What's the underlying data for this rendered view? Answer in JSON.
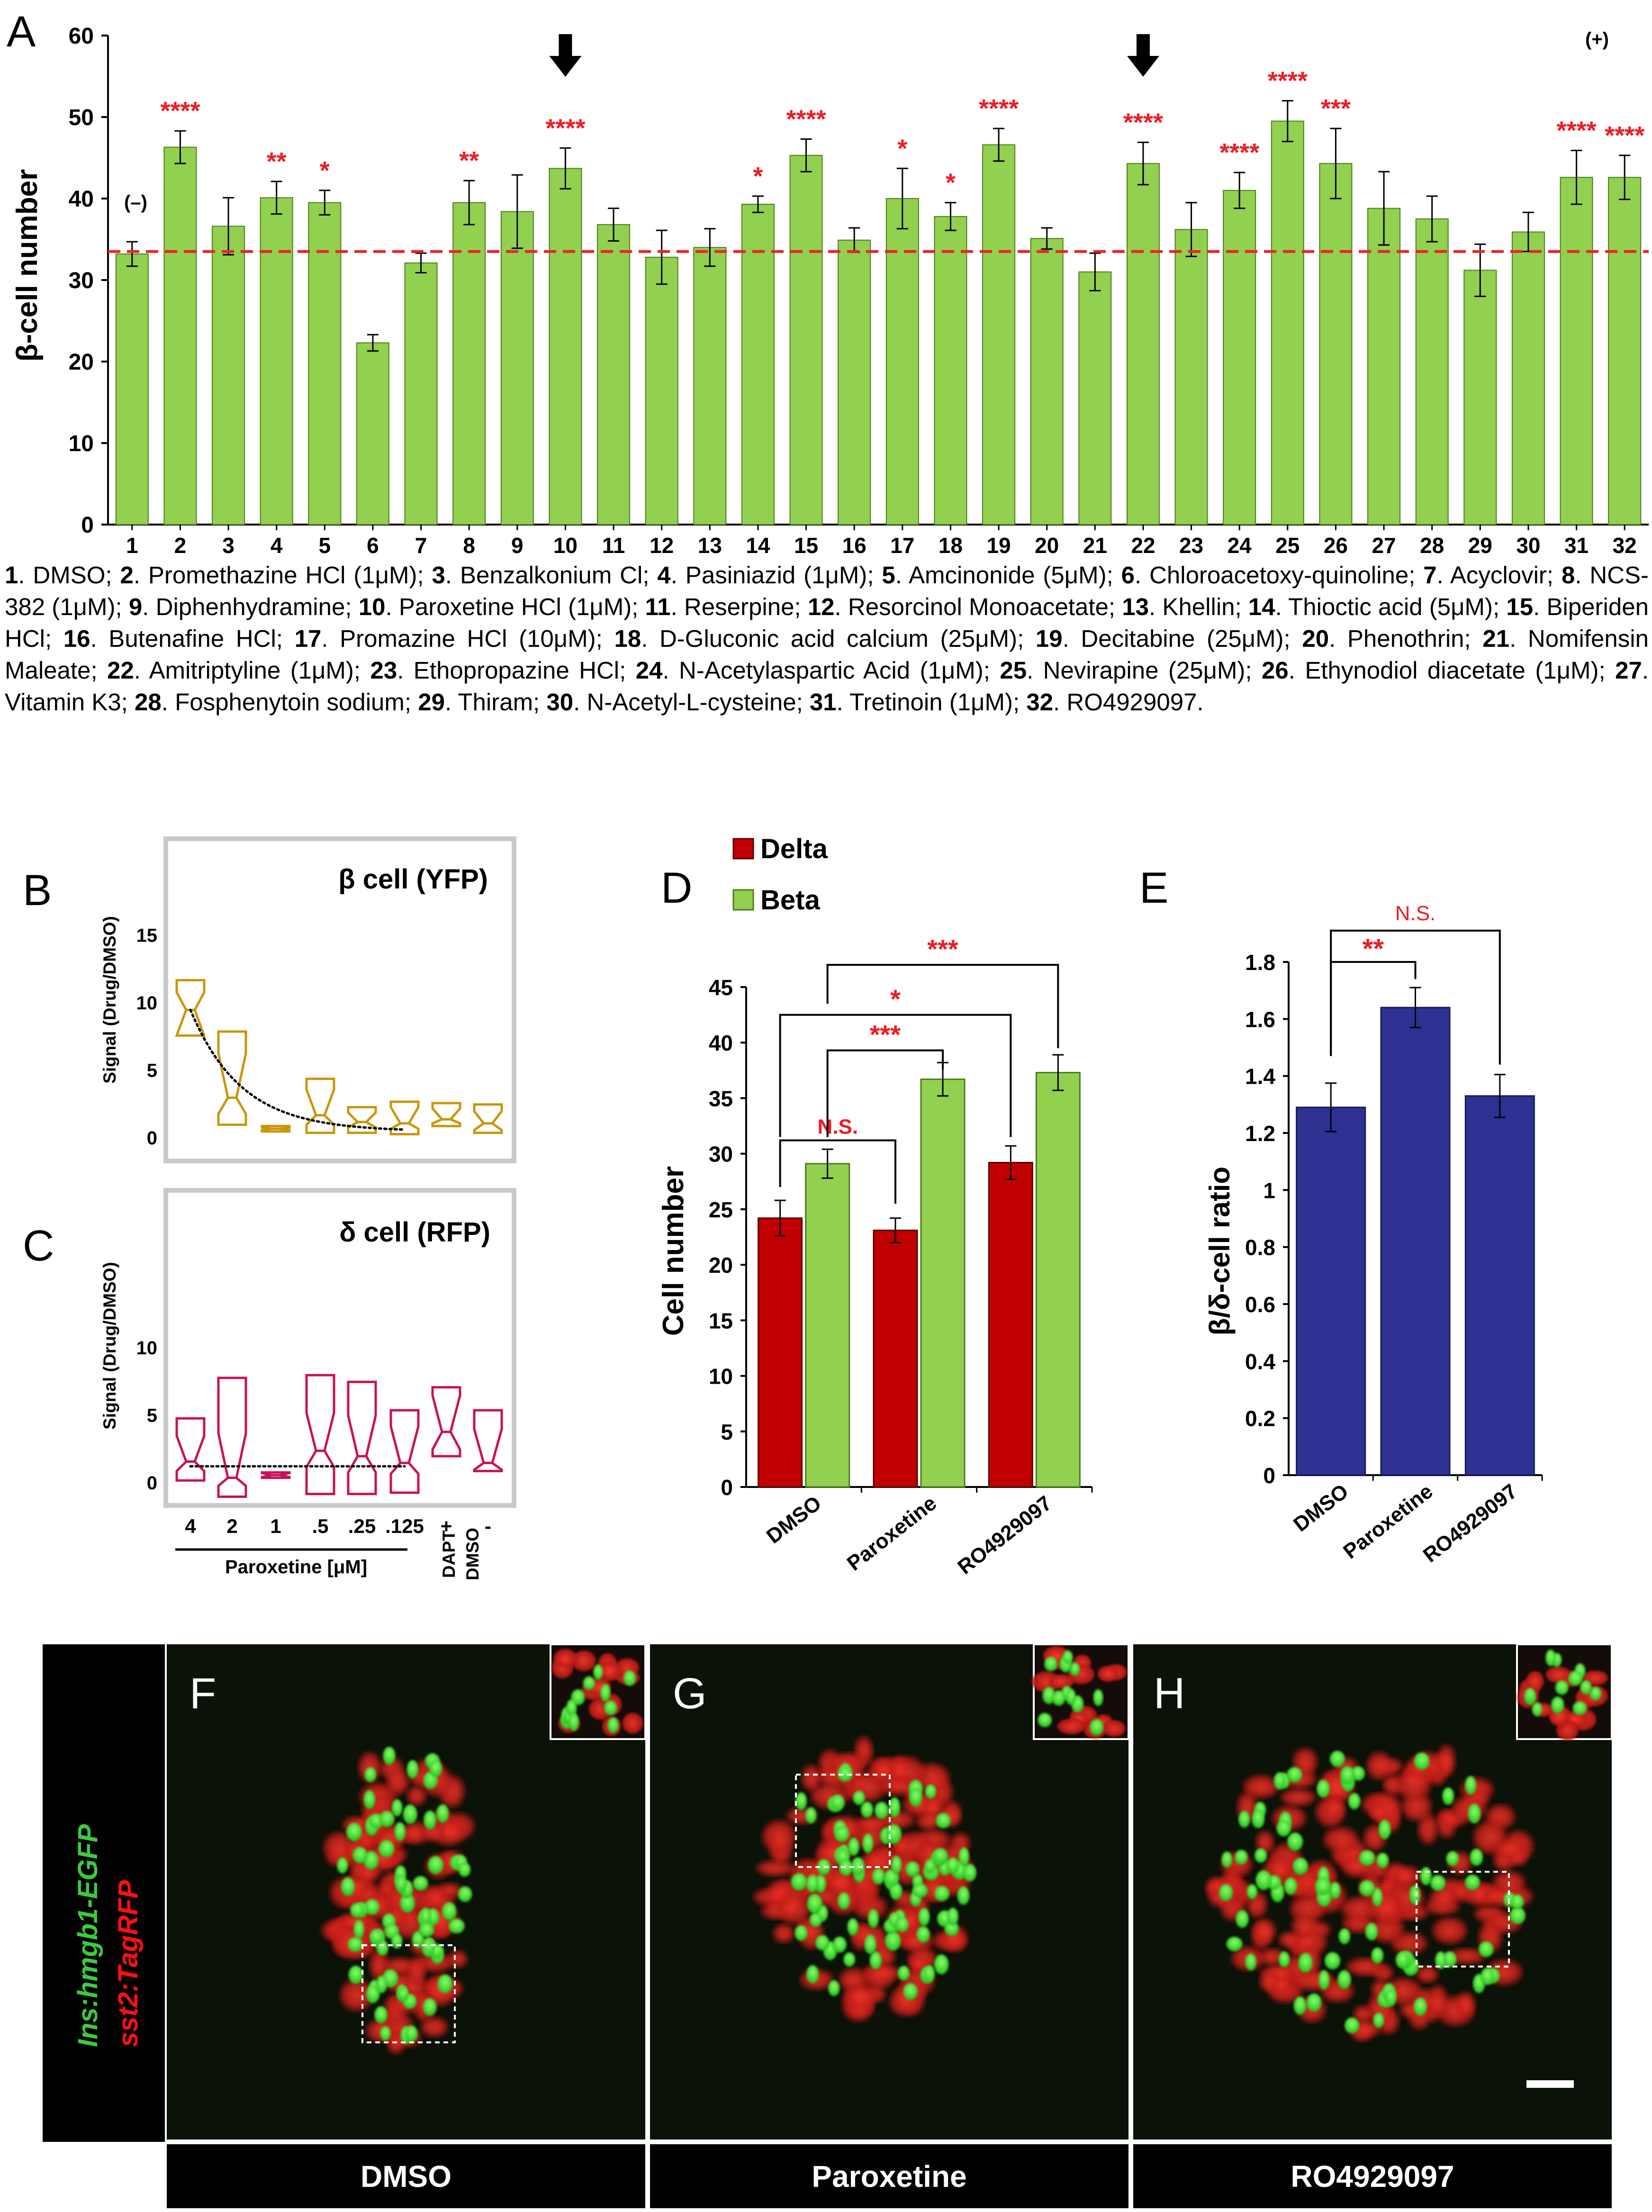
{
  "panel_letters": {
    "A": "A",
    "B": "B",
    "C": "C",
    "D": "D",
    "E": "E",
    "F": "F",
    "G": "G",
    "H": "H"
  },
  "colors": {
    "green": "#92d050",
    "green_stroke": "#4f7a1c",
    "red_line": "#e8252a",
    "star": "#ee1c24",
    "gold": "#c9960c",
    "pink": "#c9105a",
    "delta": "#c00000",
    "navy": "#2e3192"
  },
  "legend_text": {
    "items": [
      {
        "num": "1",
        "text": ". DMSO; "
      },
      {
        "num": "2",
        "text": ". Promethazine HCl (1μM); "
      },
      {
        "num": "3",
        "text": ". Benzalkonium Cl; "
      },
      {
        "num": "4",
        "text": ". Pasiniazid (1μM); "
      },
      {
        "num": "5",
        "text": ". Amcinonide (5μM); "
      },
      {
        "num": "6",
        "text": ". Chloroacetoxy-quinoline; "
      },
      {
        "num": "7",
        "text": ". Acyclovir; "
      },
      {
        "num": "8",
        "text": ". NCS-382 (1μM); "
      },
      {
        "num": "9",
        "text": ". Diphenhydramine; "
      },
      {
        "num": "10",
        "text": ". Paroxetine HCl (1μM); "
      },
      {
        "num": "11",
        "text": ". Reserpine; "
      },
      {
        "num": "12",
        "text": ". Resorcinol Monoacetate; "
      },
      {
        "num": "13",
        "text": ". Khellin; "
      },
      {
        "num": "14",
        "text": ". Thioctic acid (5μM); "
      },
      {
        "num": "15",
        "text": ". Biperiden HCl; "
      },
      {
        "num": "16",
        "text": ". Butenafine HCl; "
      },
      {
        "num": "17",
        "text": ". Promazine HCl (10μM); "
      },
      {
        "num": "18",
        "text": ". D-Gluconic acid calcium (25μM); "
      },
      {
        "num": "19",
        "text": ". Decitabine (25μM); "
      },
      {
        "num": "20",
        "text": ". Phenothrin; "
      },
      {
        "num": "21",
        "text": ". Nomifensin Maleate; "
      },
      {
        "num": "22",
        "text": ". Amitriptyline (1μM); "
      },
      {
        "num": "23",
        "text": ". Ethopropazine HCl; "
      },
      {
        "num": "24",
        "text": ". N-Acetylaspartic Acid (1μM); "
      },
      {
        "num": "25",
        "text": ". Nevirapine (25μM); "
      },
      {
        "num": "26",
        "text": ". Ethynodiol diacetate (1μM); "
      },
      {
        "num": "27",
        "text": ". Vitamin K3; "
      },
      {
        "num": "28",
        "text": ". Fosphenytoin sodium; "
      },
      {
        "num": "29",
        "text": ". Thiram; "
      },
      {
        "num": "30",
        "text": ". N-Acetyl-L-cysteine; "
      },
      {
        "num": "31",
        "text": ". Tretinoin (1μM); "
      },
      {
        "num": "32",
        "text": ". RO4929097."
      }
    ]
  },
  "chart_data": [
    {
      "panel": "A",
      "type": "bar",
      "ylabel": "β-cell number",
      "ylim": [
        0,
        60
      ],
      "yticks": [
        0,
        10,
        20,
        30,
        40,
        50,
        60
      ],
      "reference_line": 33.5,
      "arrows_at": [
        10,
        22
      ],
      "annotations": {
        "negative": "(–)",
        "positive": "(+)"
      },
      "categories": [
        "1",
        "2",
        "3",
        "4",
        "5",
        "6",
        "7",
        "8",
        "9",
        "10",
        "11",
        "12",
        "13",
        "14",
        "15",
        "16",
        "17",
        "18",
        "19",
        "20",
        "21",
        "22",
        "23",
        "24",
        "25",
        "26",
        "27",
        "28",
        "29",
        "30",
        "31",
        "32"
      ],
      "values": [
        33.2,
        46.3,
        36.6,
        40.1,
        39.5,
        22.3,
        32.1,
        39.5,
        38.4,
        43.7,
        36.8,
        32.8,
        34.0,
        39.3,
        45.3,
        34.9,
        40.0,
        37.8,
        46.6,
        35.1,
        31.0,
        44.3,
        36.2,
        41.0,
        49.5,
        44.3,
        38.8,
        37.5,
        31.2,
        35.9,
        42.6,
        42.6
      ],
      "errors": [
        1.5,
        2.0,
        3.5,
        2.0,
        1.5,
        1.0,
        1.2,
        2.7,
        4.5,
        2.5,
        2.0,
        3.3,
        2.3,
        1.0,
        2.0,
        1.5,
        3.7,
        1.7,
        2.0,
        1.3,
        2.3,
        2.6,
        3.3,
        2.2,
        2.5,
        4.3,
        4.5,
        2.8,
        3.2,
        2.4,
        3.3,
        2.7
      ],
      "significance": [
        "",
        "****",
        "",
        "**",
        "*",
        "",
        "",
        "**",
        "",
        "****",
        "",
        "",
        "",
        "*",
        "****",
        "",
        "*",
        "*",
        "****",
        "",
        "",
        "****",
        "",
        "****",
        "****",
        "***",
        "",
        "",
        "",
        "",
        "****",
        "****"
      ]
    },
    {
      "panel": "B",
      "type": "boxplot",
      "title": "β cell (YFP)",
      "ylabel": "Signal (Drug/DMSO)",
      "ylim": [
        0,
        15
      ],
      "yticks": [
        0,
        5,
        10,
        15
      ],
      "boxes": [
        {
          "top": 11.7,
          "q3": 10.8,
          "med": 9.5,
          "q1": 7.6,
          "bottom": 7.6
        },
        {
          "top": 7.9,
          "q3": 6.3,
          "med": 3.0,
          "q1": 1.8,
          "bottom": 1.0
        },
        {
          "top": 0.9,
          "q3": 0.8,
          "med": 0.7,
          "q1": 0.6,
          "bottom": 0.5
        },
        {
          "top": 4.4,
          "q3": 3.6,
          "med": 1.7,
          "q1": 1.0,
          "bottom": 0.4
        },
        {
          "top": 2.3,
          "q3": 1.9,
          "med": 1.2,
          "q1": 0.8,
          "bottom": 0.4
        },
        {
          "top": 2.7,
          "q3": 2.3,
          "med": 1.1,
          "q1": 0.7,
          "bottom": 0.3
        },
        {
          "top": 2.6,
          "q3": 2.2,
          "med": 1.4,
          "q1": 1.1,
          "bottom": 0.9
        },
        {
          "top": 2.5,
          "q3": 2.0,
          "med": 1.1,
          "q1": 0.6,
          "bottom": 0.4
        }
      ]
    },
    {
      "panel": "C",
      "type": "boxplot",
      "title": "δ cell (RFP)",
      "ylabel": "Signal (Drug/DMSO)",
      "ylim": [
        0,
        15
      ],
      "yticks": [
        0,
        5,
        10
      ],
      "categories": [
        "4",
        "2",
        "1",
        ".5",
        ".25",
        ".125",
        "+",
        "-"
      ],
      "xlabel": "Paroxetine [μM]",
      "extra_labels": [
        "DAPT",
        "DMSO"
      ],
      "boxes": [
        {
          "top": 4.8,
          "q3": 3.5,
          "med": 1.6,
          "q1": 0.9,
          "bottom": 0.2
        },
        {
          "top": 7.8,
          "q3": 3.7,
          "med": 0.4,
          "q1": -0.2,
          "bottom": -1.0
        },
        {
          "top": 0.8,
          "q3": 0.75,
          "med": 0.6,
          "q1": 0.45,
          "bottom": 0.4
        },
        {
          "top": 8.0,
          "q3": 5.2,
          "med": 2.4,
          "q1": 1.2,
          "bottom": -0.8
        },
        {
          "top": 7.5,
          "q3": 5.0,
          "med": 2.0,
          "q1": 0.8,
          "bottom": -0.8
        },
        {
          "top": 5.4,
          "q3": 4.2,
          "med": 1.5,
          "q1": 0.7,
          "bottom": -0.7
        },
        {
          "top": 7.1,
          "q3": 6.5,
          "med": 3.8,
          "q1": 2.5,
          "bottom": 2.0
        },
        {
          "top": 5.4,
          "q3": 4.0,
          "med": 1.5,
          "q1": 1.0,
          "bottom": 0.9
        }
      ]
    },
    {
      "panel": "D",
      "type": "bar",
      "ylabel": "Cell number",
      "ylim": [
        0,
        45
      ],
      "yticks": [
        0,
        5,
        10,
        15,
        20,
        25,
        30,
        35,
        40,
        45
      ],
      "categories": [
        "DMSO",
        "Paroxetine",
        "RO4929097"
      ],
      "series": [
        {
          "name": "Delta",
          "values": [
            24.2,
            23.1,
            29.2
          ],
          "errors": [
            1.6,
            1.1,
            1.5
          ]
        },
        {
          "name": "Beta",
          "values": [
            29.1,
            36.7,
            37.3
          ],
          "errors": [
            1.3,
            1.5,
            1.6
          ]
        }
      ],
      "brackets": [
        {
          "label": "N.S."
        },
        {
          "label": "***"
        },
        {
          "label": "*"
        },
        {
          "label": "***"
        }
      ]
    },
    {
      "panel": "E",
      "type": "bar",
      "ylabel": "β/δ-cell ratio",
      "ylim": [
        0,
        1.8
      ],
      "yticks": [
        0,
        0.2,
        0.4,
        0.6,
        0.8,
        1,
        1.2,
        1.4,
        1.6,
        1.8
      ],
      "ytick_labels": [
        "0",
        "0.2",
        "0.4",
        "0.6",
        "0.8",
        "1",
        "1.2",
        "1.4",
        "1.6",
        "1.8"
      ],
      "categories": [
        "DMSO",
        "Paroxetine",
        "RO4929097"
      ],
      "values": [
        1.29,
        1.64,
        1.33
      ],
      "errors": [
        0.085,
        0.07,
        0.075
      ],
      "brackets": [
        {
          "label": "N.S."
        },
        {
          "label": "**"
        }
      ]
    }
  ],
  "images": {
    "vertical_label_green": "Ins:hmgb1-EGFP",
    "vertical_label_red": "sst2:TagRFP",
    "captions": [
      "DMSO",
      "Paroxetine",
      "RO4929097"
    ]
  }
}
